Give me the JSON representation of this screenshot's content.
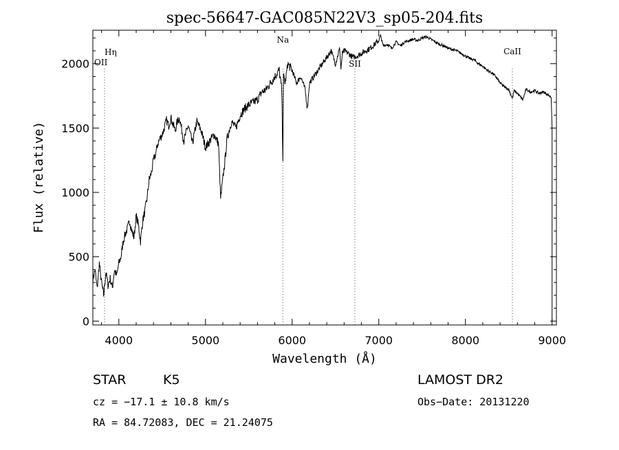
{
  "chart_data": {
    "type": "line",
    "title": "spec-56647-GAC085N22V3_sp05-204.fits",
    "xlabel": "Wavelength (Å)",
    "ylabel": "Flux (relative)",
    "xlim": [
      3700,
      9050
    ],
    "ylim": [
      -30,
      2260
    ],
    "xticks": [
      4000,
      5000,
      6000,
      7000,
      8000,
      9000
    ],
    "xtick_labels": [
      "4000",
      "5000",
      "6000",
      "7000",
      "8000",
      "9000"
    ],
    "yticks": [
      0,
      500,
      1000,
      1500,
      2000
    ],
    "ytick_labels": [
      "0",
      "500",
      "1000",
      "1500",
      "2000"
    ],
    "grid": false,
    "series": [
      {
        "x": [
          3700,
          3725,
          3750,
          3775,
          3800,
          3825,
          3850,
          3875,
          3900,
          3925,
          3950,
          3975,
          4000,
          4025,
          4050,
          4075,
          4100,
          4125,
          4150,
          4175,
          4200,
          4225,
          4250,
          4275,
          4300,
          4325,
          4350,
          4375,
          4400,
          4425,
          4450,
          4475,
          4500,
          4525,
          4550,
          4575,
          4600,
          4625,
          4650,
          4675,
          4700,
          4750,
          4800,
          4850,
          4900,
          4950,
          5000,
          5050,
          5100,
          5150,
          5175,
          5200,
          5225,
          5250,
          5300,
          5350,
          5400,
          5450,
          5500,
          5550,
          5600,
          5650,
          5700,
          5750,
          5800,
          5850,
          5880,
          5893,
          5900,
          5920,
          5950,
          6000,
          6050,
          6100,
          6150,
          6175,
          6200,
          6250,
          6300,
          6350,
          6400,
          6450,
          6500,
          6550,
          6563,
          6580,
          6600,
          6650,
          6700,
          6750,
          6800,
          6850,
          6900,
          6950,
          7000,
          7020,
          7050,
          7100,
          7150,
          7200,
          7250,
          7300,
          7350,
          7400,
          7450,
          7500,
          7550,
          7600,
          7650,
          7700,
          7750,
          7800,
          7850,
          7900,
          7950,
          8000,
          8050,
          8100,
          8150,
          8200,
          8250,
          8300,
          8350,
          8400,
          8450,
          8500,
          8542,
          8560,
          8600,
          8662,
          8700,
          8750,
          8800,
          8850,
          8900,
          8950,
          8990,
          9000
        ],
        "y": [
          320,
          400,
          250,
          450,
          300,
          200,
          380,
          280,
          330,
          260,
          400,
          350,
          450,
          500,
          620,
          680,
          720,
          780,
          700,
          650,
          820,
          750,
          620,
          780,
          850,
          950,
          1100,
          1150,
          1250,
          1300,
          1380,
          1420,
          1450,
          1500,
          1560,
          1520,
          1580,
          1530,
          1480,
          1550,
          1580,
          1400,
          1520,
          1380,
          1550,
          1480,
          1350,
          1400,
          1450,
          1380,
          950,
          1100,
          1250,
          1420,
          1550,
          1500,
          1600,
          1650,
          1680,
          1700,
          1720,
          1780,
          1800,
          1850,
          1900,
          1950,
          1800,
          1270,
          1900,
          1850,
          2000,
          1950,
          1850,
          1900,
          1800,
          1650,
          1850,
          1900,
          1950,
          2000,
          2050,
          2100,
          2000,
          2120,
          1960,
          2080,
          2100,
          2080,
          2050,
          2060,
          2080,
          2100,
          2120,
          2150,
          2180,
          2220,
          2140,
          2150,
          2120,
          2170,
          2140,
          2170,
          2180,
          2190,
          2180,
          2200,
          2210,
          2190,
          2170,
          2150,
          2140,
          2120,
          2110,
          2100,
          2080,
          2060,
          2040,
          2030,
          2000,
          1980,
          1950,
          1930,
          1900,
          1850,
          1820,
          1800,
          1730,
          1790,
          1770,
          1720,
          1800,
          1780,
          1790,
          1770,
          1780,
          1760,
          1740,
          1500
        ]
      }
    ],
    "reference_lines": [
      {
        "label": "Hη",
        "x": 3835
      },
      {
        "label": "OII",
        "x": 3727
      },
      {
        "label": "Na",
        "x": 5893
      },
      {
        "label": "SII",
        "x": 6724
      },
      {
        "label": "CaII",
        "x": 8542
      }
    ]
  },
  "info": {
    "object_type": "STAR",
    "subclass": "K5",
    "survey": "LAMOST DR2",
    "redshift_line": "cz = −17.1 ± 10.8 km/s",
    "obs_date": "Obs−Date: 20131220",
    "coords": "RA =  84.72083, DEC =  21.24075"
  }
}
